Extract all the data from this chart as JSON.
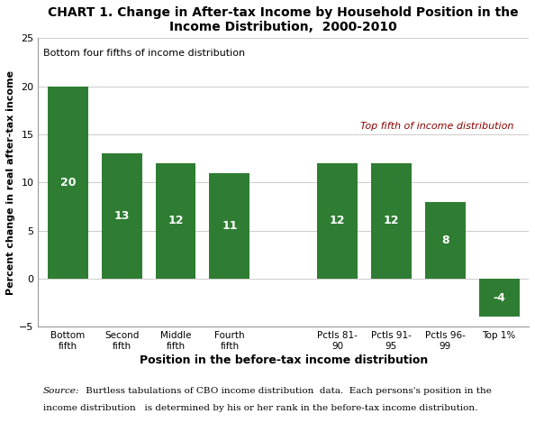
{
  "title": "CHART 1. Change in After-tax Income by Household Position in the\nIncome Distribution,  2000-2010",
  "categories": [
    "Bottom\nfifth",
    "Second\nfifth",
    "Middle\nfifth",
    "Fourth\nfifth",
    "Pctls 81-\n90",
    "Pctls 91-\n95",
    "Pctls 96-\n99",
    "Top 1%"
  ],
  "values": [
    20,
    13,
    12,
    11,
    12,
    12,
    8,
    -4
  ],
  "bar_colors": [
    "#2e7d32",
    "#2e7d32",
    "#2e7d32",
    "#2e7d32",
    "#2e7d32",
    "#2e7d32",
    "#2e7d32",
    "#2e7d32"
  ],
  "xlabel": "Position in the before-tax income distribution",
  "ylabel": "Percent change in real after-tax income",
  "ylim": [
    -5,
    25
  ],
  "yticks": [
    -5,
    0,
    5,
    10,
    15,
    20,
    25
  ],
  "label_bottom": "Bottom four fifths of income distribution",
  "label_top": "Top fifth of income distribution",
  "label_bottom_color": "#000000",
  "label_top_color": "#8b0000",
  "source_italic": "Source:",
  "source_rest": "  Burtless tabulations of CBO income distribution  data.  Each persons's position in the\nincome distribution   is determined by his or her rank in the before-tax income distribution.",
  "bar_label_color": "#ffffff",
  "bar_label_fontsize": 9,
  "title_fontsize": 10,
  "xlabel_fontsize": 9,
  "ylabel_fontsize": 8,
  "background_color": "#ffffff",
  "x_positions": [
    0,
    1,
    2,
    3,
    5,
    6,
    7,
    8
  ],
  "bar_width": 0.75
}
